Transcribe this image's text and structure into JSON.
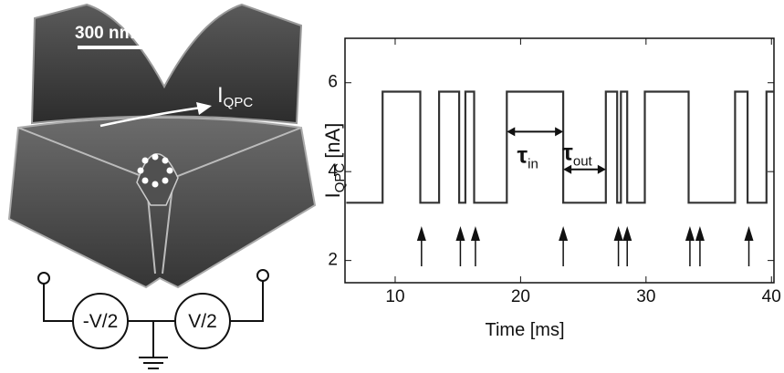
{
  "image_labels": {
    "scale_bar": "300 nm",
    "current_symbol": "I",
    "current_subscript": "QPC",
    "left_source": "-V/2",
    "right_source": "V/2"
  },
  "chart_data": {
    "type": "line",
    "color": "#333333",
    "x": [
      6.1,
      9.0,
      9.0,
      12.0,
      12.0,
      13.5,
      13.5,
      15.1,
      15.1,
      15.6,
      15.6,
      16.3,
      16.3,
      18.9,
      18.9,
      23.4,
      23.4,
      26.8,
      26.8,
      27.7,
      27.7,
      28.0,
      28.0,
      28.5,
      28.5,
      29.9,
      29.9,
      33.4,
      33.4,
      37.1,
      37.1,
      38.1,
      38.1,
      39.6,
      39.6,
      40.2
    ],
    "values": [
      3.3,
      3.3,
      5.8,
      5.8,
      3.3,
      3.3,
      5.8,
      5.8,
      3.3,
      3.3,
      5.8,
      5.8,
      3.3,
      3.3,
      5.8,
      5.8,
      3.3,
      3.3,
      5.8,
      5.8,
      3.3,
      3.3,
      5.8,
      5.8,
      3.3,
      3.3,
      5.8,
      5.8,
      3.3,
      3.3,
      5.8,
      5.8,
      3.3,
      3.3,
      5.8,
      5.8
    ],
    "xlim": [
      6,
      40.2
    ],
    "ylim": [
      1.5,
      7
    ],
    "xticks": [
      10,
      20,
      30,
      40
    ],
    "yticks": [
      2,
      4,
      6
    ],
    "x_label": "Time [ms]",
    "y_label_symbol": "I",
    "y_label_subscript": "QPC",
    "y_label_unit": "[nA]",
    "event_markers": [
      12.1,
      15.2,
      16.4,
      23.4,
      27.8,
      28.5,
      33.5,
      34.3,
      38.2
    ],
    "annotations": [
      {
        "symbol": "τ",
        "subscript": "in",
        "x": [
          18.9,
          23.4
        ],
        "y": 4.9
      },
      {
        "symbol": "τ",
        "subscript": "out",
        "x": [
          23.4,
          26.8
        ],
        "y": 4.05
      }
    ]
  }
}
